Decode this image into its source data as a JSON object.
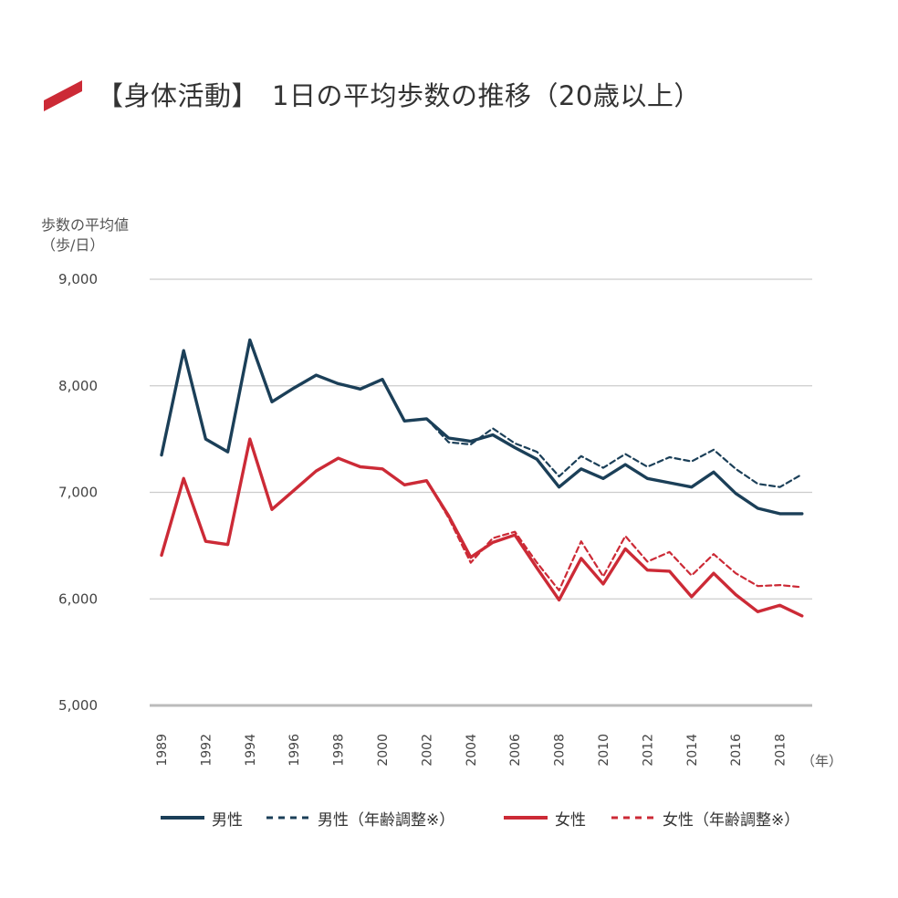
{
  "title": "【身体活動】　1日の平均歩数の推移（20歳以上）",
  "colors": {
    "male": "#1b3f58",
    "female": "#cc2a36",
    "grid": "#cccccc",
    "axis": "#bbbbbb",
    "accent": "#cc2a36"
  },
  "chart_data": {
    "type": "line",
    "ylabel": [
      "歩数の平均値",
      "（歩/日）"
    ],
    "xunit": "（年）",
    "ylim": [
      5000,
      9000
    ],
    "yticks": [
      {
        "value": 9000,
        "label": "9,000"
      },
      {
        "value": 8000,
        "label": "8,000"
      },
      {
        "value": 7000,
        "label": "7,000"
      },
      {
        "value": 6000,
        "label": "6,000"
      },
      {
        "value": 5000,
        "label": "5,000"
      }
    ],
    "xticks": [
      1989,
      1992,
      1994,
      1996,
      1998,
      2000,
      2002,
      2004,
      2006,
      2008,
      2010,
      2012,
      2014,
      2016,
      2018
    ],
    "x_points": [
      1989,
      1991,
      1992,
      1993,
      1994,
      1995,
      1996,
      1997,
      1998,
      1999,
      2000,
      2001,
      2002,
      2003,
      2004,
      2005,
      2006,
      2007,
      2008,
      2009,
      2010,
      2011,
      2012,
      2013,
      2014,
      2015,
      2016,
      2017,
      2018,
      2019
    ],
    "grid": true,
    "series": [
      {
        "name": "男性",
        "style": "solid",
        "color": "#1b3f58",
        "points": [
          {
            "x": 1989,
            "y": 7350
          },
          {
            "x": 1991,
            "y": 8330
          },
          {
            "x": 1992,
            "y": 7500
          },
          {
            "x": 1993,
            "y": 7380
          },
          {
            "x": 1994,
            "y": 8430
          },
          {
            "x": 1995,
            "y": 7850
          },
          {
            "x": 1996,
            "y": 7980
          },
          {
            "x": 1997,
            "y": 8100
          },
          {
            "x": 1998,
            "y": 8020
          },
          {
            "x": 1999,
            "y": 7970
          },
          {
            "x": 2000,
            "y": 8060
          },
          {
            "x": 2001,
            "y": 7670
          },
          {
            "x": 2002,
            "y": 7690
          },
          {
            "x": 2003,
            "y": 7510
          },
          {
            "x": 2004,
            "y": 7480
          },
          {
            "x": 2005,
            "y": 7540
          },
          {
            "x": 2006,
            "y": 7420
          },
          {
            "x": 2007,
            "y": 7310
          },
          {
            "x": 2008,
            "y": 7050
          },
          {
            "x": 2009,
            "y": 7220
          },
          {
            "x": 2010,
            "y": 7130
          },
          {
            "x": 2011,
            "y": 7260
          },
          {
            "x": 2012,
            "y": 7130
          },
          {
            "x": 2013,
            "y": 7090
          },
          {
            "x": 2014,
            "y": 7050
          },
          {
            "x": 2015,
            "y": 7190
          },
          {
            "x": 2016,
            "y": 6990
          },
          {
            "x": 2017,
            "y": 6850
          },
          {
            "x": 2018,
            "y": 6800
          },
          {
            "x": 2019,
            "y": 6800
          }
        ]
      },
      {
        "name": "男性（年齢調整※）",
        "style": "dashed",
        "color": "#1b3f58",
        "points": [
          {
            "x": 2002,
            "y": 7690
          },
          {
            "x": 2003,
            "y": 7470
          },
          {
            "x": 2004,
            "y": 7450
          },
          {
            "x": 2005,
            "y": 7600
          },
          {
            "x": 2006,
            "y": 7460
          },
          {
            "x": 2007,
            "y": 7380
          },
          {
            "x": 2008,
            "y": 7150
          },
          {
            "x": 2009,
            "y": 7340
          },
          {
            "x": 2010,
            "y": 7230
          },
          {
            "x": 2011,
            "y": 7360
          },
          {
            "x": 2012,
            "y": 7240
          },
          {
            "x": 2013,
            "y": 7330
          },
          {
            "x": 2014,
            "y": 7290
          },
          {
            "x": 2015,
            "y": 7400
          },
          {
            "x": 2016,
            "y": 7220
          },
          {
            "x": 2017,
            "y": 7080
          },
          {
            "x": 2018,
            "y": 7050
          },
          {
            "x": 2019,
            "y": 7170
          }
        ]
      },
      {
        "name": "女性",
        "style": "solid",
        "color": "#cc2a36",
        "points": [
          {
            "x": 1989,
            "y": 6410
          },
          {
            "x": 1991,
            "y": 7130
          },
          {
            "x": 1992,
            "y": 6540
          },
          {
            "x": 1993,
            "y": 6510
          },
          {
            "x": 1994,
            "y": 7500
          },
          {
            "x": 1995,
            "y": 6840
          },
          {
            "x": 1996,
            "y": 7020
          },
          {
            "x": 1997,
            "y": 7200
          },
          {
            "x": 1998,
            "y": 7320
          },
          {
            "x": 1999,
            "y": 7240
          },
          {
            "x": 2000,
            "y": 7220
          },
          {
            "x": 2001,
            "y": 7070
          },
          {
            "x": 2002,
            "y": 7110
          },
          {
            "x": 2003,
            "y": 6780
          },
          {
            "x": 2004,
            "y": 6390
          },
          {
            "x": 2005,
            "y": 6530
          },
          {
            "x": 2006,
            "y": 6600
          },
          {
            "x": 2007,
            "y": 6290
          },
          {
            "x": 2008,
            "y": 5990
          },
          {
            "x": 2009,
            "y": 6380
          },
          {
            "x": 2010,
            "y": 6140
          },
          {
            "x": 2011,
            "y": 6470
          },
          {
            "x": 2012,
            "y": 6270
          },
          {
            "x": 2013,
            "y": 6260
          },
          {
            "x": 2014,
            "y": 6020
          },
          {
            "x": 2015,
            "y": 6240
          },
          {
            "x": 2016,
            "y": 6040
          },
          {
            "x": 2017,
            "y": 5880
          },
          {
            "x": 2018,
            "y": 5940
          },
          {
            "x": 2019,
            "y": 5840
          }
        ]
      },
      {
        "name": "女性（年齢調整※）",
        "style": "dashed",
        "color": "#cc2a36",
        "points": [
          {
            "x": 2002,
            "y": 7110
          },
          {
            "x": 2003,
            "y": 6760
          },
          {
            "x": 2004,
            "y": 6340
          },
          {
            "x": 2005,
            "y": 6570
          },
          {
            "x": 2006,
            "y": 6630
          },
          {
            "x": 2007,
            "y": 6340
          },
          {
            "x": 2008,
            "y": 6080
          },
          {
            "x": 2009,
            "y": 6540
          },
          {
            "x": 2010,
            "y": 6210
          },
          {
            "x": 2011,
            "y": 6590
          },
          {
            "x": 2012,
            "y": 6350
          },
          {
            "x": 2013,
            "y": 6440
          },
          {
            "x": 2014,
            "y": 6220
          },
          {
            "x": 2015,
            "y": 6420
          },
          {
            "x": 2016,
            "y": 6240
          },
          {
            "x": 2017,
            "y": 6120
          },
          {
            "x": 2018,
            "y": 6130
          },
          {
            "x": 2019,
            "y": 6110
          }
        ]
      }
    ],
    "legend": [
      {
        "label": "男性",
        "series": 0
      },
      {
        "label": "男性（年齢調整※）",
        "series": 1
      },
      {
        "label": "女性",
        "series": 2
      },
      {
        "label": "女性（年齢調整※）",
        "series": 3
      }
    ]
  }
}
